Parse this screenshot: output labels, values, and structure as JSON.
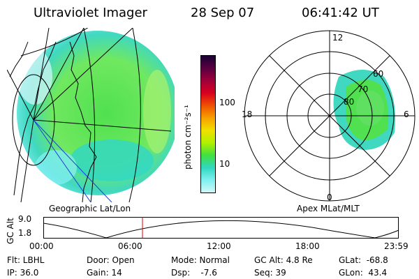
{
  "header": {
    "instrument": "Ultraviolet Imager",
    "date": "28 Sep 07",
    "time": "06:41:42 UT"
  },
  "geo_panel": {
    "label": "Geographic Lat/Lon"
  },
  "polar_panel": {
    "label": "Apex MLat/MLT",
    "mlt_labels": {
      "top": "12",
      "left": "18",
      "right": "6",
      "bottom": "0"
    },
    "lat_labels": [
      "60",
      "70",
      "80"
    ]
  },
  "colorbar": {
    "unit_label": "photon cm⁻²s⁻¹",
    "ticks": [
      "100",
      "10"
    ],
    "colors": [
      "#1a0033",
      "#5a0040",
      "#a0003a",
      "#d80020",
      "#f05000",
      "#f8a000",
      "#f0e000",
      "#b0f000",
      "#40e040",
      "#30d8c0",
      "#80f0f0",
      "#d0f8f8"
    ]
  },
  "altitude_plot": {
    "ylabel": "GC Alt",
    "y_ticks": [
      "9.0",
      "1.8"
    ],
    "x_ticks": [
      "00:00",
      "06:00",
      "12:00",
      "18:00",
      "23:59"
    ],
    "cursor_time_hours": 6.695,
    "cursor_color": "#dd0000"
  },
  "footer": {
    "flt": "Flt: LBHL",
    "ip": "IP: 36.0",
    "door": "Door: Open",
    "gain": "Gain: 14",
    "mode": "Mode: Normal",
    "dsp": "Dsp:    -7.6",
    "gc_alt": "GC Alt: 4.8 Re",
    "seq": "Seq: 39",
    "glat": "GLat:  -68.8",
    "glon": "GLon:  43.4"
  },
  "icons": {
    "cursor": "time-cursor-line"
  }
}
